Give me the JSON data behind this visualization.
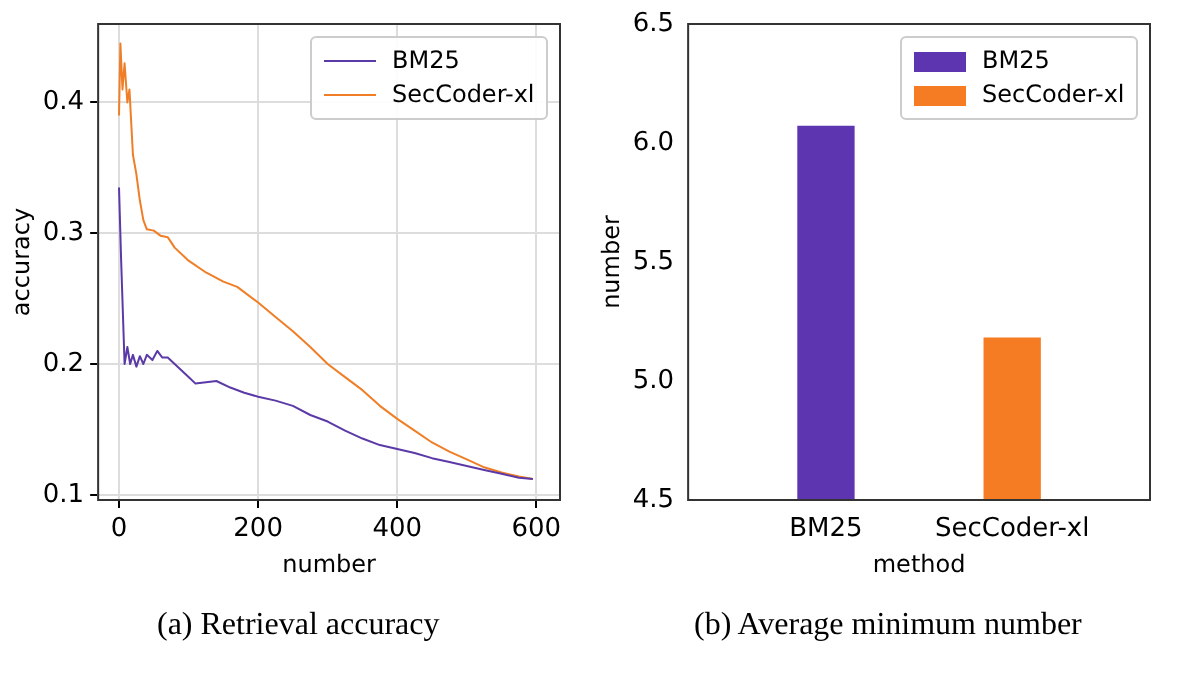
{
  "chart_data": [
    {
      "type": "line",
      "xlabel": "number",
      "ylabel": "accuracy",
      "xlim": [
        -30,
        634
      ],
      "xticks": [
        0,
        200,
        400,
        600
      ],
      "ylim": [
        0.096,
        0.46
      ],
      "yticks": [
        0.1,
        0.2,
        0.3,
        0.4
      ],
      "grid": true,
      "legend": "top right",
      "annotations": [
        "(a) Retrieval accuracy"
      ],
      "series": [
        {
          "name": "BM25",
          "color": "#5b3aa8",
          "x": [
            0,
            3,
            8,
            12,
            16,
            20,
            25,
            30,
            35,
            40,
            48,
            55,
            62,
            70,
            80,
            90,
            100,
            110,
            125,
            140,
            160,
            180,
            200,
            225,
            250,
            275,
            300,
            325,
            350,
            375,
            400,
            425,
            450,
            475,
            500,
            525,
            550,
            575,
            595
          ],
          "values": [
            0.335,
            0.28,
            0.2,
            0.213,
            0.2,
            0.207,
            0.198,
            0.206,
            0.2,
            0.207,
            0.203,
            0.21,
            0.205,
            0.205,
            0.2,
            0.195,
            0.19,
            0.185,
            0.186,
            0.187,
            0.182,
            0.178,
            0.175,
            0.172,
            0.168,
            0.161,
            0.156,
            0.149,
            0.143,
            0.138,
            0.135,
            0.132,
            0.128,
            0.125,
            0.122,
            0.119,
            0.116,
            0.113,
            0.112
          ]
        },
        {
          "name": "SecCoder-xl",
          "color": "#f07e26",
          "x": [
            0,
            2,
            5,
            8,
            12,
            15,
            20,
            25,
            30,
            35,
            40,
            50,
            60,
            70,
            80,
            100,
            125,
            150,
            170,
            200,
            225,
            250,
            275,
            300,
            325,
            350,
            375,
            400,
            425,
            450,
            475,
            500,
            525,
            550,
            575,
            595
          ],
          "values": [
            0.39,
            0.445,
            0.41,
            0.43,
            0.4,
            0.41,
            0.36,
            0.345,
            0.325,
            0.31,
            0.303,
            0.302,
            0.298,
            0.297,
            0.289,
            0.279,
            0.27,
            0.263,
            0.259,
            0.247,
            0.236,
            0.225,
            0.213,
            0.2,
            0.19,
            0.18,
            0.168,
            0.158,
            0.149,
            0.14,
            0.133,
            0.127,
            0.121,
            0.117,
            0.114,
            0.112
          ]
        }
      ]
    },
    {
      "type": "bar",
      "categories": [
        "BM25",
        "SecCoder-xl"
      ],
      "xlabel": "method",
      "ylabel": "number",
      "ylim": [
        4.5,
        6.5
      ],
      "yticks": [
        {
          "value": 4.5,
          "label": "4.5"
        },
        {
          "value": 5,
          "label": "5.0"
        },
        {
          "value": 5.5,
          "label": "5.5"
        },
        {
          "value": 6,
          "label": "6.0"
        },
        {
          "value": 6.5,
          "label": "6.5"
        }
      ],
      "legend": "top right",
      "annotations": [
        "(b) Average minimum number"
      ],
      "series": [
        {
          "name": "BM25",
          "color": "#5e35b1",
          "values": [
            6.07,
            null
          ]
        },
        {
          "name": "SecCoder-xl",
          "color": "#f57c22",
          "values": [
            null,
            5.18
          ]
        }
      ]
    }
  ]
}
